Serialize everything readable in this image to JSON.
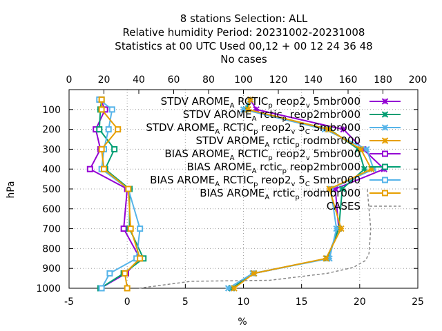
{
  "chart_data": {
    "type": "line",
    "title_lines": [
      "8 stations Selection: ALL",
      "Relative humidity  Period: 20231002-20231008",
      "Statistics at 00 UTC  Used  00,12  + 00 12 24 36 48",
      "No cases"
    ],
    "xlabel": "%",
    "ylabel": "hPa",
    "xlim": [
      -5,
      25
    ],
    "x2lim": [
      0,
      200
    ],
    "ylim": [
      1000,
      0
    ],
    "x_ticks": [
      "-5",
      "0",
      "5",
      "10",
      "15",
      "20",
      "25"
    ],
    "x2_ticks": [
      "0",
      "20",
      "40",
      "60",
      "80",
      "100",
      "120",
      "140",
      "160",
      "180",
      "200"
    ],
    "y_ticks": [
      "100",
      "200",
      "300",
      "400",
      "500",
      "600",
      "700",
      "800",
      "900",
      "1000"
    ],
    "grid": true,
    "legend_position": "top-right",
    "series": [
      {
        "name": "STDV AROME_A RCTIC_p reop2_v 5mbr000",
        "label": {
          "a": "STDV AROME",
          "b": "A",
          "c": " RCTIC",
          "d": "p",
          "e": " reop2",
          "f": "v",
          "g": " 5mbr000"
        },
        "color": "#9400d3",
        "marker": "x",
        "x": [
          9,
          10.9,
          17.2,
          18.2,
          17.9,
          22.1,
          20.3,
          18.6,
          11.1,
          10.6
        ]
      },
      {
        "name": "STDV AROME_A rctic_p reop2mbr000",
        "label": {
          "a": "STDV AROME",
          "b": "A",
          "c": " rctic",
          "d": "p",
          "e": " reop2mbr000"
        },
        "color": "#009e73",
        "marker": "x",
        "x": [
          9,
          10.9,
          17.2,
          18.2,
          18.5,
          20.4,
          19.9,
          17.4,
          10.2,
          10.6
        ]
      },
      {
        "name": "STDV AROME_A RCTIC_p reop2_v 5_C Smbr000",
        "label": {
          "a": "STDV AROME",
          "b": "A",
          "c": " RCTIC",
          "d": "p",
          "e": " reop2",
          "f": "v",
          "g": " 5",
          "h": "C",
          "i": " Smbr000"
        },
        "color": "#56b4e9",
        "marker": "x",
        "x": [
          8.7,
          10.8,
          17.4,
          18.0,
          17.5,
          21.2,
          20.6,
          17.0,
          10.0,
          10.6
        ]
      },
      {
        "name": "STDV AROME_A rctic_p rodmbr000",
        "label": {
          "a": "STDV AROME",
          "b": "A",
          "c": " rctic",
          "d": "p",
          "e": " rodmbr000"
        },
        "color": "#e69f00",
        "marker": "x",
        "x": [
          9.2,
          10.9,
          17.1,
          18.4,
          17.4,
          21.0,
          20.1,
          17.3,
          10.4,
          10.6
        ]
      },
      {
        "name": "BIAS AROME_A RCTIC_p reop2_v 5mbr000",
        "label": {
          "a": "BIAS AROME",
          "b": "A",
          "c": " RCTIC",
          "d": "p",
          "e": " reop2",
          "f": "v",
          "g": " 5mbr000"
        },
        "color": "#9400d3",
        "marker": "square",
        "x": [
          -2.3,
          -0.1,
          1.1,
          -0.3,
          0,
          -3.2,
          -2.3,
          -2.7,
          -1.9,
          -2.3
        ]
      },
      {
        "name": "BIAS AROME_A rctic_p reop2mbr000",
        "label": {
          "a": "BIAS AROME",
          "b": "A",
          "c": " rctic",
          "d": "p",
          "e": " reop2mbr000"
        },
        "color": "#009e73",
        "marker": "square",
        "x": [
          -2.3,
          -0.3,
          1.4,
          0.2,
          0.2,
          -1.9,
          -1.1,
          -2.4,
          -2.3,
          -2.2
        ]
      },
      {
        "name": "BIAS AROME_A RCTIC_p reop2_v 5_C Smbr000",
        "label": {
          "a": "BIAS AROME",
          "b": "A",
          "c": " RCTIC",
          "d": "p",
          "e": " reop2",
          "f": "v",
          "g": " 5",
          "h": "C",
          "i": " Smbr000"
        },
        "color": "#56b4e9",
        "marker": "square",
        "x": [
          -2.2,
          -1.5,
          0.8,
          1.1,
          0.1,
          -2.2,
          -2.0,
          -1.6,
          -1.3,
          -2.4
        ]
      },
      {
        "name": "BIAS AROME_A rctic_p rodmbr000",
        "label": {
          "a": "BIAS AROME",
          "b": "A",
          "c": " rctic",
          "d": "p",
          "e": " rodmbr000"
        },
        "color": "#e69f00",
        "marker": "square",
        "x": [
          0,
          -0.2,
          1.1,
          0.3,
          0.1,
          -2.0,
          -2.2,
          -0.8,
          -2.2,
          -2.2
        ]
      },
      {
        "name": "CASES",
        "label": {
          "a": "CASES"
        },
        "color": "#888888",
        "marker": "none",
        "dash": true,
        "x2": [
          40,
          70,
          115,
          148,
          163,
          170,
          172,
          173,
          172,
          171
        ],
        "y2": [
          1000,
          965,
          960,
          925,
          895,
          860,
          825,
          700,
          600,
          500
        ]
      }
    ],
    "y": [
      1000,
      925,
      850,
      700,
      500,
      400,
      300,
      200,
      100,
      50
    ]
  }
}
